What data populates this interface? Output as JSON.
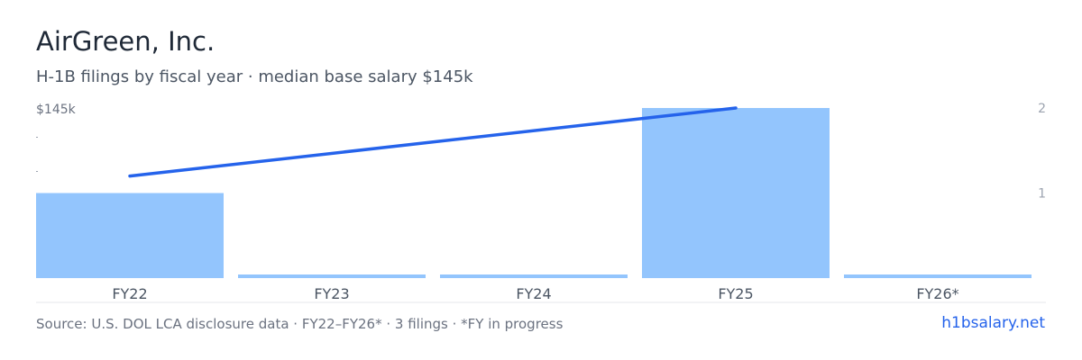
{
  "title": "AirGreen, Inc.",
  "subtitle": "H-1B filings by fiscal year · median base salary $145k",
  "chart_data": {
    "type": "bar",
    "categories": [
      "FY22",
      "FY23",
      "FY24",
      "FY25",
      "FY26*"
    ],
    "series": [
      {
        "type": "bar",
        "axis": "right",
        "values": [
          1,
          0,
          0,
          2,
          0
        ]
      },
      {
        "type": "line",
        "axis": "left",
        "points": [
          {
            "x": "FY22",
            "y": 127
          },
          {
            "x": "FY25",
            "y": 145
          }
        ]
      }
    ],
    "left_axis": {
      "tick_labels": [
        "$145k"
      ],
      "max": 145
    },
    "right_axis": {
      "tick_labels": [
        "2",
        "1"
      ],
      "ylim": [
        0,
        2
      ]
    },
    "grid": false,
    "colors": {
      "bar": "#93c5fd",
      "line": "#2563eb",
      "axis_text": "#6b7280"
    }
  },
  "footer": {
    "source": "Source: U.S. DOL LCA disclosure data · FY22–FY26* · 3 filings · *FY in progress",
    "link": "h1bsalary.net"
  }
}
